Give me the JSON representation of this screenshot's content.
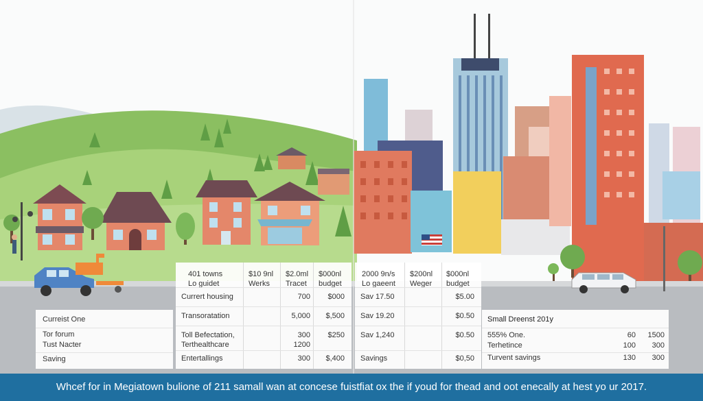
{
  "left_table": {
    "rows": [
      "Curreist One",
      "Tor forum",
      "Tust Nacter",
      "Saving"
    ]
  },
  "mid_table": {
    "headers": [
      [
        "401 towns",
        "Lo guidet"
      ],
      [
        "$10 9nl",
        "Werks"
      ],
      [
        "$2.0ml",
        "Tracet"
      ],
      [
        "$000nl",
        "budget"
      ]
    ],
    "rows": [
      {
        "label": "Currert housing",
        "v1": "",
        "v2": "700",
        "v3": "$000"
      },
      {
        "label": "Transoratation",
        "v1": "",
        "v2": "5,000",
        "v3": "$,500"
      },
      {
        "label": "Toll Befectation,",
        "label2": "Terthealthcare",
        "v1": "",
        "v2": "300",
        "v2b": "1200",
        "v3": "$250"
      },
      {
        "label": "Entertallings",
        "v1": "",
        "v2": "300",
        "v3": "$,400"
      }
    ]
  },
  "right_table": {
    "headers": [
      [
        "2000 9n/s",
        "Lo gaeent"
      ],
      [
        "$200nl",
        "Weger"
      ],
      [
        "$000nl",
        "budget"
      ]
    ],
    "rows": [
      {
        "label": "Sav 17.50",
        "v1": "",
        "v2": "$5.00"
      },
      {
        "label": "Sav 19.20",
        "v1": "",
        "v2": "$0.50"
      },
      {
        "label": "Sav 1,240",
        "v1": "",
        "v2": "$0.50"
      },
      {
        "label": "Savings",
        "v1": "",
        "v2": "$0,50"
      }
    ]
  },
  "far_right_table": {
    "title": "Small Dreenst 201y",
    "rows": [
      {
        "label": "555% One.",
        "a": "60",
        "b": "1500"
      },
      {
        "label": "Terhetince",
        "a": "100",
        "b": "300"
      },
      {
        "label": "Turvent savings",
        "a": "130",
        "b": "300"
      }
    ]
  },
  "banner": {
    "text": "Whcef for in Megiatown bulione of 211 samall wan at concese fuistfiat ox the if youd for thead and oot enecally at hest yo ur 2017."
  }
}
